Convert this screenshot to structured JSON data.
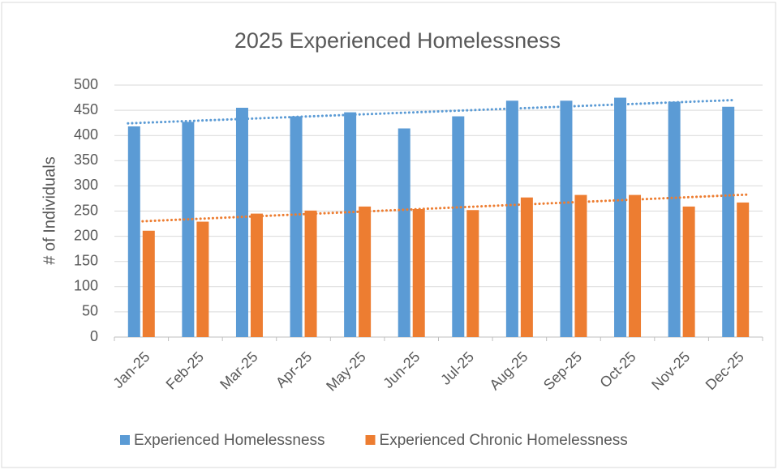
{
  "chart_data": {
    "type": "bar",
    "title": "2025 Experienced Homelessness",
    "y_label": "# of Individuals",
    "categories": [
      "Jan-25",
      "Feb-25",
      "Mar-25",
      "Apr-25",
      "May-25",
      "Jun-25",
      "Jul-25",
      "Aug-25",
      "Sep-25",
      "Oct-25",
      "Nov-25",
      "Dec-25"
    ],
    "series": [
      {
        "name": "Experienced Homelessness",
        "color": "#5b9bd5",
        "values": [
          418,
          427,
          455,
          438,
          446,
          414,
          438,
          469,
          469,
          475,
          467,
          457
        ]
      },
      {
        "name": "Experienced Chronic Homelessness",
        "color": "#ed7d31",
        "values": [
          211,
          229,
          245,
          251,
          259,
          254,
          252,
          277,
          282,
          282,
          259,
          267
        ]
      }
    ],
    "ylim": [
      0,
      500
    ],
    "yticks": [
      0,
      50,
      100,
      150,
      200,
      250,
      300,
      350,
      400,
      450,
      500
    ],
    "grid": true,
    "trendline": "linear",
    "legend": "bottom"
  }
}
